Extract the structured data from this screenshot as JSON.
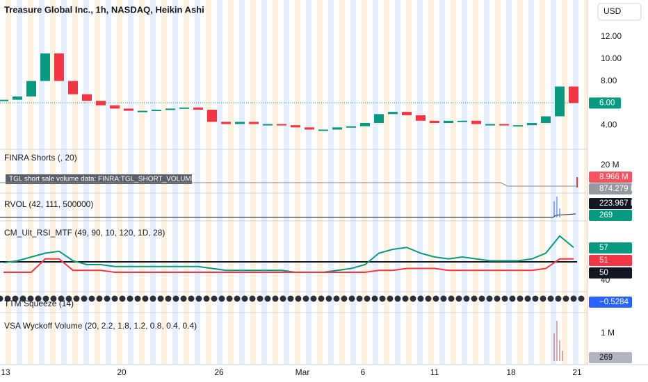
{
  "header": {
    "title": "Treasure Global Inc., 1h, NASDAQ, Heikin Ashi",
    "currency": "USD"
  },
  "price": {
    "ticks": [
      {
        "value": 12,
        "label": "12.00"
      },
      {
        "value": 10,
        "label": "10.00"
      },
      {
        "value": 8,
        "label": "8.00"
      },
      {
        "value": 4,
        "label": "4.00"
      }
    ],
    "last": {
      "value": 6,
      "label": "6.00"
    },
    "closes": [
      6.3,
      6.6,
      8.0,
      10.5,
      8.0,
      6.8,
      6.2,
      5.8,
      5.5,
      5.3,
      5.3,
      5.4,
      5.5,
      5.6,
      5.4,
      4.3,
      4.1,
      4.3,
      4.1,
      4.1,
      4.0,
      3.8,
      3.6,
      3.6,
      3.8,
      3.9,
      4.2,
      5.0,
      5.2,
      4.9,
      4.4,
      4.2,
      4.4,
      4.4,
      4.1,
      4.1,
      4.0,
      4.0,
      4.2,
      4.8,
      7.5,
      6.0
    ]
  },
  "finra": {
    "label": "FINRA Shorts (, 20)",
    "tooltip": "TGL short sale volume data: FINRA:TGL_SHORT_VOLUME",
    "axis": "20 M",
    "value1": "8.966 M",
    "value2": "874.279 K"
  },
  "rvol": {
    "label": "RVOL (42, 111, 500000)",
    "value1": "223.967 K",
    "value2": "269"
  },
  "rsi": {
    "label": "CM_Ult_RSI_MTF (49, 90, 10, 120, 1D, 28)",
    "value1": "57",
    "value2": "51",
    "value3": "50",
    "axis": "40",
    "line": [
      49,
      50,
      52,
      54,
      55,
      50,
      48,
      48,
      47,
      47,
      47,
      47,
      47,
      47,
      47,
      46,
      45,
      45,
      45,
      45,
      45,
      44,
      44,
      44,
      45,
      46,
      48,
      54,
      56,
      57,
      54,
      52,
      51,
      52,
      51,
      50,
      50,
      50,
      51,
      54,
      63,
      57
    ],
    "signal": [
      44,
      44,
      44,
      51,
      51,
      45,
      45,
      45,
      44,
      44,
      44,
      44,
      44,
      44,
      44,
      44,
      44,
      44,
      44,
      44,
      44,
      44,
      44,
      44,
      44,
      44,
      44,
      45,
      45,
      46,
      46,
      46,
      45,
      45,
      45,
      45,
      45,
      45,
      45,
      46,
      51,
      51
    ]
  },
  "ttm": {
    "label": "TTM Squeeze (14)",
    "value": "−0.5284"
  },
  "vsa": {
    "label": "VSA Wyckoff Volume (20, 2.2, 1.8, 1.2, 0.8, 0.4, 0.4)",
    "axis": "1 M",
    "value": "269"
  },
  "time_axis": [
    "13",
    "20",
    "26",
    "Mar",
    "6",
    "11",
    "18",
    "21"
  ]
}
